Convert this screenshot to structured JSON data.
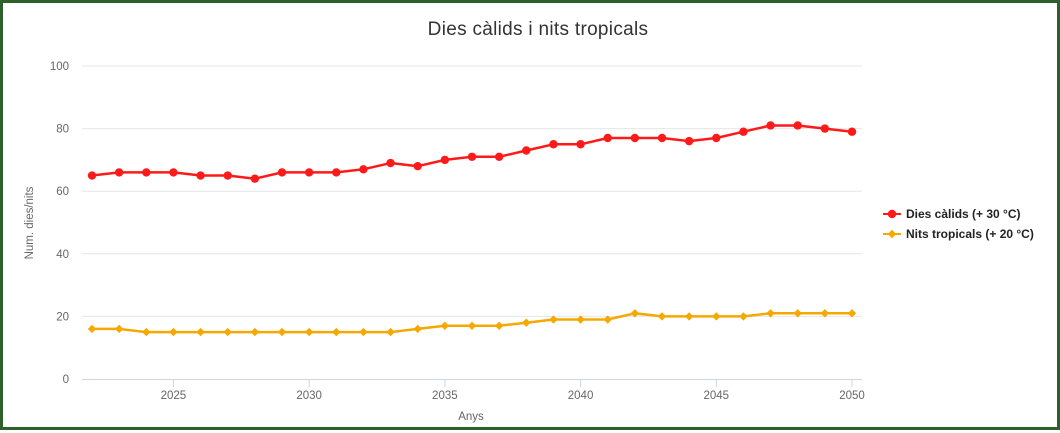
{
  "chart_data": {
    "type": "line",
    "title": "Dies càlids i nits tropicals",
    "xlabel": "Anys",
    "ylabel": "Num. dies/nits",
    "xlim": [
      2022,
      2050
    ],
    "ylim": [
      0,
      100
    ],
    "x_ticks": [
      "2025",
      "2030",
      "2035",
      "2040",
      "2045",
      "2050"
    ],
    "y_ticks": [
      "0",
      "20",
      "40",
      "60",
      "80",
      "100"
    ],
    "grid": true,
    "legend_position": "right",
    "x": [
      2022,
      2023,
      2024,
      2025,
      2026,
      2027,
      2028,
      2029,
      2030,
      2031,
      2032,
      2033,
      2034,
      2035,
      2036,
      2037,
      2038,
      2039,
      2040,
      2041,
      2042,
      2043,
      2044,
      2045,
      2046,
      2047,
      2048,
      2049,
      2050
    ],
    "series": [
      {
        "name": "Dies càlids (+ 30 °C)",
        "color": "#ff1a1a",
        "marker": "circle",
        "values": [
          65,
          66,
          66,
          66,
          65,
          65,
          64,
          66,
          66,
          66,
          67,
          69,
          68,
          70,
          71,
          71,
          73,
          75,
          75,
          77,
          77,
          77,
          76,
          77,
          79,
          81,
          81,
          80,
          79
        ]
      },
      {
        "name": "Nits tropicals (+ 20 °C)",
        "color": "#f5a800",
        "marker": "diamond",
        "values": [
          16,
          16,
          15,
          15,
          15,
          15,
          15,
          15,
          15,
          15,
          15,
          15,
          16,
          17,
          17,
          17,
          18,
          19,
          19,
          19,
          21,
          20,
          20,
          20,
          20,
          21,
          21,
          21,
          21
        ]
      }
    ]
  }
}
